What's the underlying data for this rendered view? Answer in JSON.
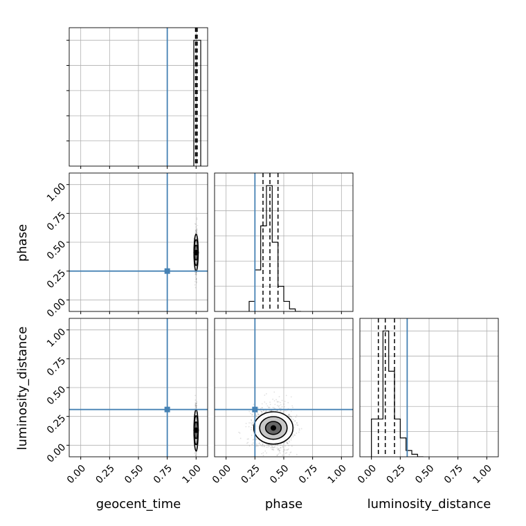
{
  "chart_data": {
    "type": "corner",
    "parameters": [
      "geocent_time",
      "phase",
      "luminosity_distance"
    ],
    "tick_labels": [
      "0.00",
      "0.25",
      "0.50",
      "0.75",
      "1.00"
    ],
    "range": [
      -0.1,
      1.1
    ],
    "truths": {
      "geocent_time": 0.75,
      "phase": 0.25,
      "luminosity_distance": 0.31
    },
    "truth_color": "#4682b4",
    "grid": true,
    "histograms": {
      "geocent_time": {
        "bins": [
          0.98,
          1.04
        ],
        "values": [
          1.0
        ],
        "quantiles": [
          0.995,
          1.0,
          1.01
        ]
      },
      "phase": {
        "bins": [
          0.2,
          0.25,
          0.3,
          0.35,
          0.4,
          0.45,
          0.5,
          0.55,
          0.6,
          0.65
        ],
        "values": [
          0.08,
          0.33,
          0.68,
          1.0,
          0.55,
          0.2,
          0.08,
          0.02,
          0.0
        ],
        "quantiles": [
          0.32,
          0.38,
          0.45
        ]
      },
      "luminosity_distance": {
        "bins": [
          0.0,
          0.05,
          0.1,
          0.15,
          0.2,
          0.25,
          0.3,
          0.35,
          0.4,
          0.45
        ],
        "values": [
          0.3,
          0.3,
          1.0,
          0.68,
          0.3,
          0.15,
          0.05,
          0.02,
          0.0
        ],
        "quantiles": [
          0.06,
          0.12,
          0.2
        ]
      }
    },
    "panels_2d": [
      {
        "x": "geocent_time",
        "y": "phase",
        "center": [
          1.0,
          0.41
        ],
        "spread": [
          0.006,
          0.08
        ],
        "n_points": 450
      },
      {
        "x": "geocent_time",
        "y": "luminosity_distance",
        "center": [
          1.0,
          0.13
        ],
        "spread": [
          0.006,
          0.09
        ],
        "n_points": 450
      },
      {
        "x": "phase",
        "y": "luminosity_distance",
        "center": [
          0.41,
          0.15
        ],
        "spread": [
          0.085,
          0.07
        ],
        "n_points": 1400
      }
    ]
  }
}
